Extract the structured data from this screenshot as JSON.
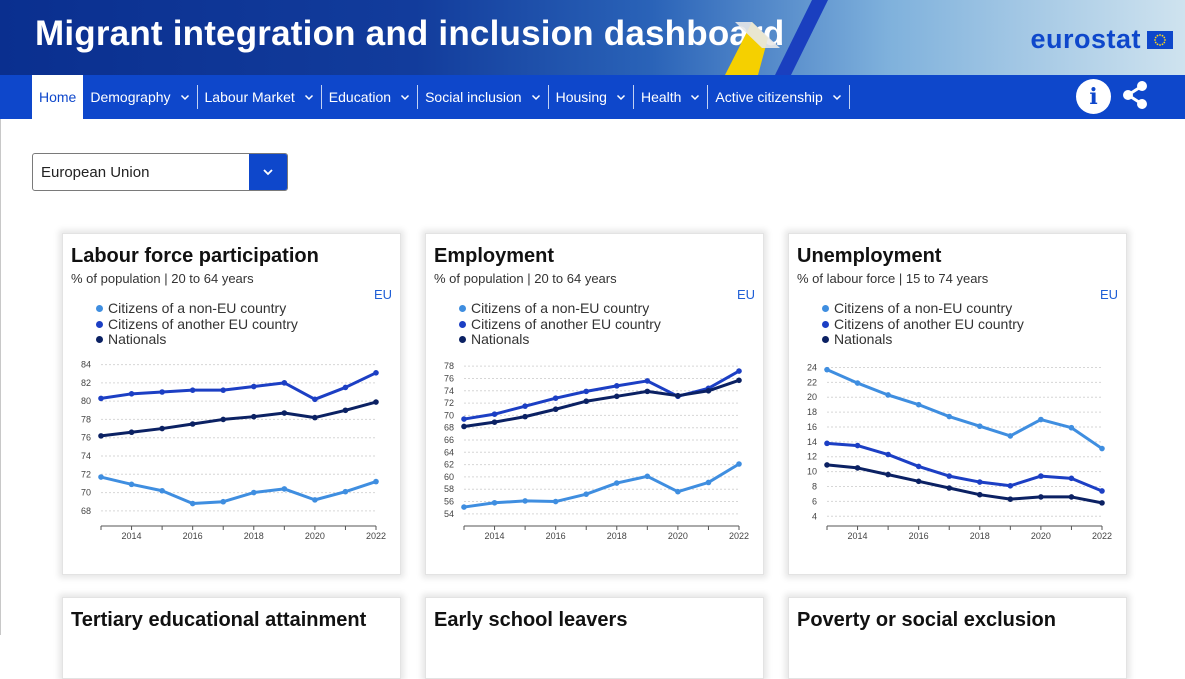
{
  "header": {
    "title": "Migrant integration and inclusion dashboard",
    "brand": "eurostat"
  },
  "nav": {
    "home": "Home",
    "items": [
      {
        "label": "Demography"
      },
      {
        "label": "Labour Market"
      },
      {
        "label": "Education"
      },
      {
        "label": "Social inclusion"
      },
      {
        "label": "Housing"
      },
      {
        "label": "Health"
      },
      {
        "label": "Active citizenship"
      }
    ],
    "info_icon": "info-icon",
    "share_icon": "share-icon"
  },
  "country_select": {
    "value": "European Union",
    "icon": "chevron-down-icon"
  },
  "colors": {
    "brand_blue": "#0e47cb",
    "series_non_eu": "#3f8ee0",
    "series_other_eu": "#1c3fc4",
    "series_nationals": "#0b2163"
  },
  "cards": [
    {
      "title": "Labour force participation",
      "subtitle": "% of population | 20 to 64 years",
      "geo": "EU",
      "legend": [
        "Citizens of a non-EU country",
        "Citizens of another EU country",
        "Nationals"
      ]
    },
    {
      "title": "Employment",
      "subtitle": "% of population | 20 to 64 years",
      "geo": "EU",
      "legend": [
        "Citizens of a non-EU country",
        "Citizens of another EU country",
        "Nationals"
      ]
    },
    {
      "title": "Unemployment",
      "subtitle": "% of labour force | 15 to 74 years",
      "geo": "EU",
      "legend": [
        "Citizens of a non-EU country",
        "Citizens of another EU country",
        "Nationals"
      ]
    },
    {
      "title": "Tertiary educational attainment"
    },
    {
      "title": "Early school leavers"
    },
    {
      "title": "Poverty or social exclusion"
    }
  ],
  "chart_data": [
    {
      "type": "line",
      "x": [
        2013,
        2014,
        2015,
        2016,
        2017,
        2018,
        2019,
        2020,
        2021,
        2022
      ],
      "xticks": [
        "2014",
        "2016",
        "2018",
        "2020",
        "2022"
      ],
      "ylim": [
        67,
        84.5
      ],
      "yticks": [
        68,
        70,
        72,
        74,
        76,
        78,
        80,
        82,
        84
      ],
      "grid": "horizontal dotted",
      "series": [
        {
          "name": "Citizens of a non-EU country",
          "values": [
            71.7,
            70.9,
            70.2,
            68.8,
            69.0,
            70.0,
            70.4,
            69.2,
            70.1,
            71.2
          ]
        },
        {
          "name": "Citizens of another EU country",
          "values": [
            80.3,
            80.8,
            81.0,
            81.2,
            81.2,
            81.6,
            82.0,
            80.2,
            81.5,
            83.1
          ]
        },
        {
          "name": "Nationals",
          "values": [
            76.2,
            76.6,
            77.0,
            77.5,
            78.0,
            78.3,
            78.7,
            78.2,
            79.0,
            79.9
          ]
        }
      ]
    },
    {
      "type": "line",
      "x": [
        2013,
        2014,
        2015,
        2016,
        2017,
        2018,
        2019,
        2020,
        2021,
        2022
      ],
      "xticks": [
        "2014",
        "2016",
        "2018",
        "2020",
        "2022"
      ],
      "ylim": [
        53,
        79
      ],
      "yticks": [
        54,
        56,
        58,
        60,
        62,
        64,
        66,
        68,
        70,
        72,
        74,
        76,
        78
      ],
      "grid": "horizontal dotted",
      "series": [
        {
          "name": "Citizens of a non-EU country",
          "values": [
            55.1,
            55.8,
            56.1,
            56.0,
            57.2,
            59.0,
            60.1,
            57.6,
            59.1,
            62.1
          ]
        },
        {
          "name": "Citizens of another EU country",
          "values": [
            69.4,
            70.2,
            71.5,
            72.8,
            73.9,
            74.8,
            75.6,
            73.1,
            74.4,
            77.2
          ]
        },
        {
          "name": "Nationals",
          "values": [
            68.2,
            68.9,
            69.8,
            71.0,
            72.3,
            73.1,
            73.9,
            73.2,
            74.0,
            75.7
          ]
        }
      ]
    },
    {
      "type": "line",
      "x": [
        2013,
        2014,
        2015,
        2016,
        2017,
        2018,
        2019,
        2020,
        2021,
        2022
      ],
      "xticks": [
        "2014",
        "2016",
        "2018",
        "2020",
        "2022"
      ],
      "ylim": [
        3.5,
        25
      ],
      "yticks": [
        4,
        6,
        8,
        10,
        12,
        14,
        16,
        18,
        20,
        22,
        24
      ],
      "grid": "horizontal dotted",
      "series": [
        {
          "name": "Citizens of a non-EU country",
          "values": [
            23.7,
            21.9,
            20.3,
            19.0,
            17.4,
            16.1,
            14.8,
            17.0,
            15.9,
            13.1
          ]
        },
        {
          "name": "Citizens of another EU country",
          "values": [
            13.8,
            13.5,
            12.3,
            10.7,
            9.4,
            8.6,
            8.1,
            9.4,
            9.1,
            7.4
          ]
        },
        {
          "name": "Nationals",
          "values": [
            10.9,
            10.5,
            9.6,
            8.7,
            7.8,
            6.9,
            6.3,
            6.6,
            6.6,
            5.8
          ]
        }
      ]
    }
  ]
}
